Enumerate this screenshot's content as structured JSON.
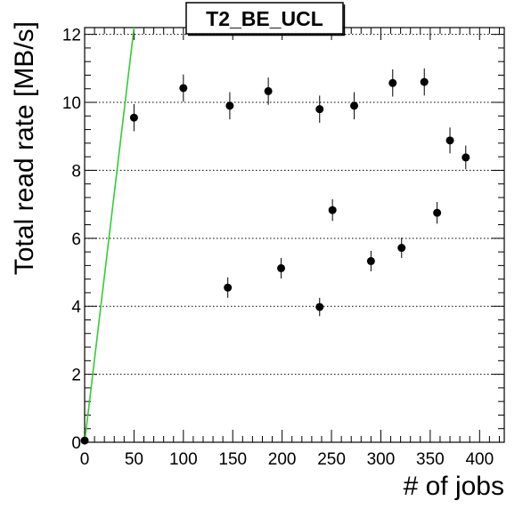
{
  "chart_data": {
    "type": "scatter",
    "title": "T2_BE_UCL",
    "xlabel": "# of jobs",
    "ylabel": "Total read rate [MB/s]",
    "xlim": [
      0,
      425
    ],
    "ylim": [
      0,
      12.2
    ],
    "x_ticks": [
      0,
      50,
      100,
      150,
      200,
      250,
      300,
      350,
      400
    ],
    "y_ticks": [
      0,
      2,
      4,
      6,
      8,
      10,
      12
    ],
    "grid": {
      "horizontal": true,
      "vertical": false,
      "style": "dotted"
    },
    "series": [
      {
        "marker_color": "#000000",
        "points": [
          {
            "x": 0,
            "y": 0.05,
            "err": 0.0
          },
          {
            "x": 50,
            "y": 9.55,
            "err": 0.4
          },
          {
            "x": 100,
            "y": 10.42,
            "err": 0.4
          },
          {
            "x": 145,
            "y": 4.55,
            "err": 0.3
          },
          {
            "x": 147,
            "y": 9.9,
            "err": 0.4
          },
          {
            "x": 186,
            "y": 10.33,
            "err": 0.4
          },
          {
            "x": 199,
            "y": 5.12,
            "err": 0.3
          },
          {
            "x": 238,
            "y": 3.98,
            "err": 0.27
          },
          {
            "x": 238,
            "y": 9.8,
            "err": 0.4
          },
          {
            "x": 251,
            "y": 6.83,
            "err": 0.32
          },
          {
            "x": 273,
            "y": 9.9,
            "err": 0.4
          },
          {
            "x": 290,
            "y": 5.33,
            "err": 0.3
          },
          {
            "x": 312,
            "y": 10.57,
            "err": 0.4
          },
          {
            "x": 321,
            "y": 5.72,
            "err": 0.3
          },
          {
            "x": 344,
            "y": 10.6,
            "err": 0.4
          },
          {
            "x": 357,
            "y": 6.75,
            "err": 0.32
          },
          {
            "x": 370,
            "y": 8.88,
            "err": 0.38
          },
          {
            "x": 386,
            "y": 8.38,
            "err": 0.35
          }
        ]
      }
    ],
    "reference_line": {
      "color": "#33cc33",
      "x": [
        0,
        50
      ],
      "y": [
        0,
        12.2
      ]
    }
  }
}
